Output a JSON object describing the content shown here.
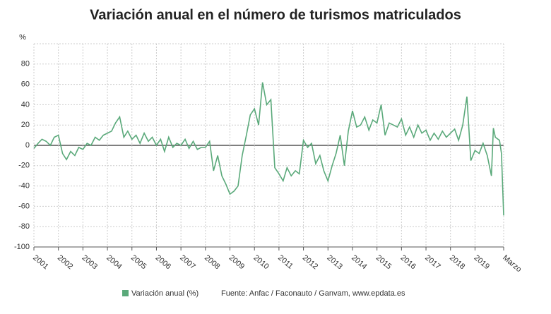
{
  "chart_data": {
    "type": "line",
    "title": "Variación anual en el número de turismos matriculados",
    "y_label": "%",
    "source": "Fuente: Anfac / Faconauto / Ganvam, www.epdata.es",
    "x": [
      2001,
      2001.17,
      2001.33,
      2001.5,
      2001.67,
      2001.83,
      2002,
      2002.17,
      2002.33,
      2002.5,
      2002.67,
      2002.83,
      2003,
      2003.17,
      2003.33,
      2003.5,
      2003.67,
      2003.83,
      2004,
      2004.17,
      2004.33,
      2004.5,
      2004.67,
      2004.83,
      2005,
      2005.17,
      2005.33,
      2005.5,
      2005.67,
      2005.83,
      2006,
      2006.17,
      2006.33,
      2006.5,
      2006.67,
      2006.83,
      2007,
      2007.17,
      2007.33,
      2007.5,
      2007.67,
      2007.83,
      2008,
      2008.17,
      2008.33,
      2008.5,
      2008.67,
      2008.83,
      2009,
      2009.17,
      2009.33,
      2009.5,
      2009.67,
      2009.83,
      2010,
      2010.17,
      2010.33,
      2010.5,
      2010.67,
      2010.83,
      2011,
      2011.17,
      2011.33,
      2011.5,
      2011.67,
      2011.83,
      2012,
      2012.17,
      2012.33,
      2012.5,
      2012.67,
      2012.83,
      2013,
      2013.17,
      2013.33,
      2013.5,
      2013.67,
      2013.83,
      2014,
      2014.17,
      2014.33,
      2014.5,
      2014.67,
      2014.83,
      2015,
      2015.17,
      2015.33,
      2015.5,
      2015.67,
      2015.83,
      2016,
      2016.17,
      2016.33,
      2016.5,
      2016.67,
      2016.83,
      2017,
      2017.17,
      2017.33,
      2017.5,
      2017.67,
      2017.83,
      2018,
      2018.17,
      2018.33,
      2018.5,
      2018.67,
      2018.83,
      2019,
      2019.17,
      2019.33,
      2019.5,
      2019.67,
      2019.75,
      2019.83,
      2020,
      2020.08,
      2020.17
    ],
    "series": [
      {
        "name": "Variación anual (%)",
        "color": "#5aa97a",
        "values": [
          -3,
          2,
          6,
          4,
          0,
          8,
          10,
          -8,
          -14,
          -6,
          -10,
          -2,
          -4,
          2,
          0,
          8,
          5,
          10,
          12,
          14,
          22,
          28,
          8,
          14,
          6,
          10,
          2,
          12,
          4,
          8,
          0,
          6,
          -6,
          8,
          -2,
          2,
          0,
          6,
          -3,
          4,
          -4,
          -2,
          -2,
          4,
          -25,
          -10,
          -30,
          -38,
          -48,
          -45,
          -40,
          -10,
          10,
          30,
          36,
          20,
          62,
          40,
          45,
          -22,
          -28,
          -35,
          -22,
          -30,
          -25,
          -28,
          5,
          -2,
          2,
          -18,
          -10,
          -25,
          -35,
          -20,
          -8,
          10,
          -20,
          14,
          34,
          18,
          20,
          28,
          15,
          25,
          22,
          40,
          10,
          22,
          20,
          18,
          26,
          10,
          18,
          8,
          20,
          12,
          15,
          5,
          12,
          6,
          14,
          8,
          12,
          16,
          5,
          20,
          48,
          -15,
          -5,
          -8,
          2,
          -10,
          -30,
          17,
          8,
          5,
          -8,
          -69
        ]
      }
    ],
    "xlim": [
      2001,
      2020.17
    ],
    "xticks": [
      2001,
      2002,
      2003,
      2004,
      2005,
      2006,
      2007,
      2008,
      2009,
      2010,
      2011,
      2012,
      2013,
      2014,
      2015,
      2016,
      2017,
      2018,
      2019,
      {
        "value": 2020.17,
        "label": "Marzo"
      }
    ],
    "ylim": [
      -100,
      100
    ],
    "yticks": [
      -100,
      -80,
      -60,
      -40,
      -20,
      0,
      20,
      40,
      60,
      80
    ],
    "grid": true
  }
}
